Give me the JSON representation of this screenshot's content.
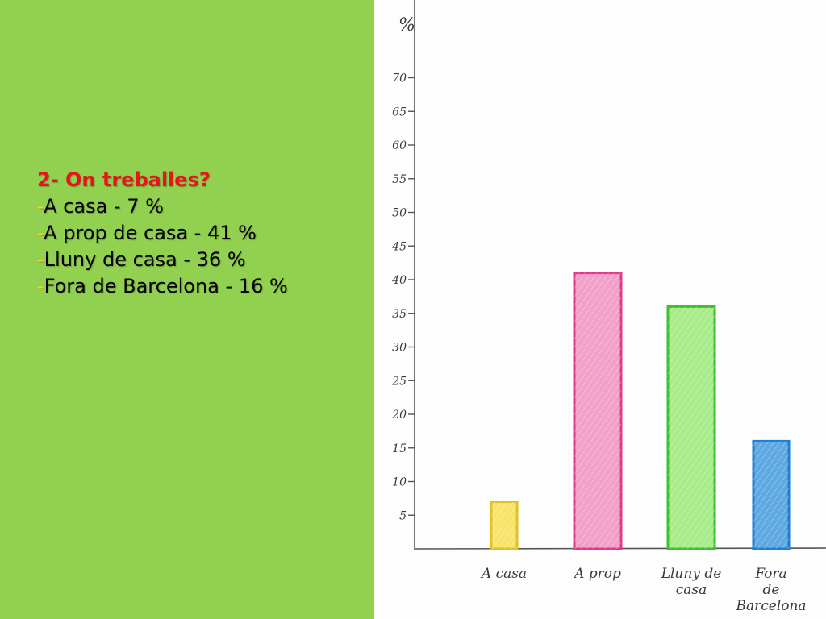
{
  "slide": {
    "question": "2- On treballes?",
    "answers": [
      {
        "dash": "-",
        "text": "A casa - 7 %"
      },
      {
        "dash": "-",
        "text": "A prop de casa - 41 %"
      },
      {
        "dash": "-",
        "text": "Lluny de casa - 36 %"
      },
      {
        "dash": "-",
        "text": "Fora de Barcelona - 16 %"
      }
    ]
  },
  "colors": {
    "background_panel": "#92d050",
    "question_text": "#e8141c",
    "dash": "#ffd21f"
  },
  "chart_data": {
    "type": "bar",
    "ylabel": "%",
    "ylim": [
      0,
      70
    ],
    "yticks": [
      5,
      10,
      15,
      20,
      25,
      30,
      35,
      40,
      45,
      50,
      55,
      60,
      65,
      70
    ],
    "categories": [
      {
        "lines": [
          "A casa"
        ]
      },
      {
        "lines": [
          "A prop"
        ]
      },
      {
        "lines": [
          "Lluny de",
          "casa"
        ]
      },
      {
        "lines": [
          "Fora",
          "de",
          "Barcelona"
        ]
      }
    ],
    "values": [
      7,
      41,
      36,
      16
    ],
    "bar_colors": [
      "#f7e46a",
      "#f2a0c8",
      "#a8ec8a",
      "#5ea9e2"
    ],
    "bar_edge_colors": [
      "#e0c020",
      "#de3a88",
      "#3cc02c",
      "#1f7ed0"
    ],
    "grid": false,
    "legend": "none"
  }
}
